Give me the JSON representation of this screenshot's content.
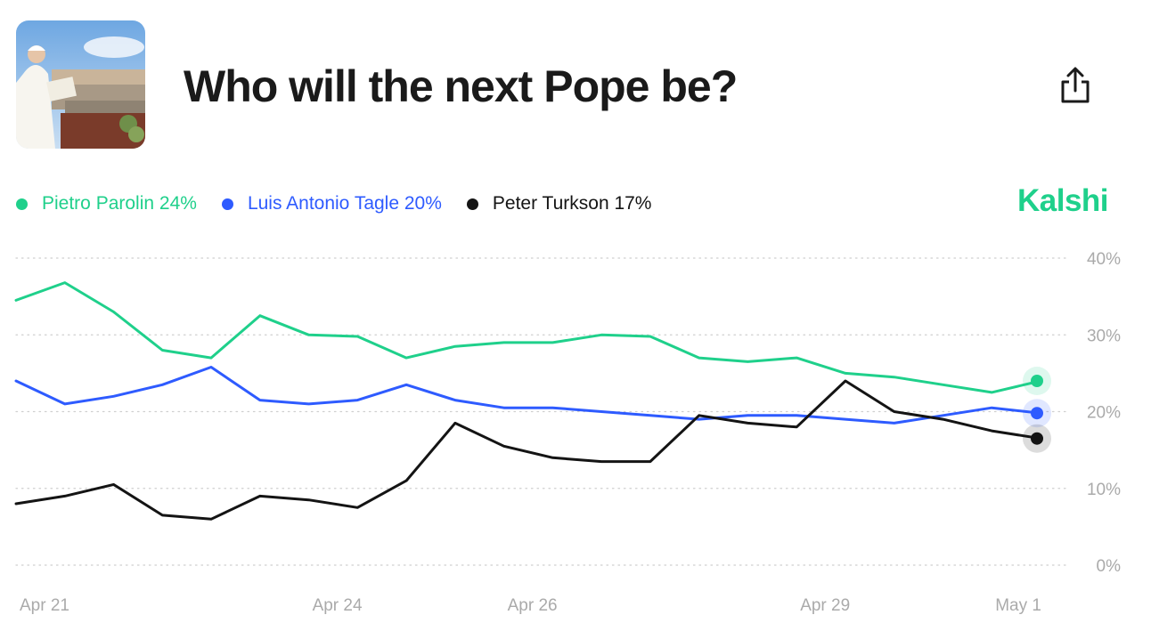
{
  "header": {
    "title": "Who will the next Pope be?"
  },
  "brand": {
    "name": "Kalshi",
    "color": "#1fd08b"
  },
  "icons": {
    "share": "share-icon",
    "thumbnail": "pope-photo"
  },
  "legend": [
    {
      "label": "Pietro Parolin 24%",
      "color": "#1fd08b"
    },
    {
      "label": "Luis Antonio Tagle 20%",
      "color": "#2e5bff"
    },
    {
      "label": "Peter Turkson 17%",
      "color": "#141414"
    }
  ],
  "chart_data": {
    "type": "line",
    "title": "",
    "xlabel": "",
    "ylabel": "",
    "ylim": [
      0,
      40
    ],
    "yticks": [
      40,
      30,
      20,
      10,
      0
    ],
    "ytick_labels": [
      "40%",
      "30%",
      "20%",
      "10%",
      "0%"
    ],
    "xticks": [
      "Apr 21",
      "Apr 24",
      "Apr 26",
      "Apr 29",
      "May 1"
    ],
    "grid": "horizontal-dotted",
    "x": [
      "Apr 21",
      "Apr 21",
      "Apr 22",
      "Apr 22",
      "Apr 23",
      "Apr 23",
      "Apr 24",
      "Apr 24",
      "Apr 25",
      "Apr 25",
      "Apr 26",
      "Apr 26",
      "Apr 27",
      "Apr 27",
      "Apr 28",
      "Apr 28",
      "Apr 29",
      "Apr 29",
      "Apr 30",
      "Apr 30",
      "May 1",
      "May 1"
    ],
    "series": [
      {
        "name": "Pietro Parolin",
        "color": "#1fd08b",
        "values": [
          34.5,
          36.8,
          33,
          28,
          27,
          32.5,
          30,
          29.8,
          27,
          28.5,
          29,
          29,
          30,
          29.8,
          27,
          26.5,
          27,
          25,
          24.5,
          23.5,
          22.5,
          24
        ]
      },
      {
        "name": "Luis Antonio Tagle",
        "color": "#2e5bff",
        "values": [
          24,
          21,
          22,
          23.5,
          25.8,
          21.5,
          21,
          21.5,
          23.5,
          21.5,
          20.5,
          20.5,
          20,
          19.5,
          19,
          19.5,
          19.5,
          19,
          18.5,
          19.5,
          20.5,
          19.8
        ]
      },
      {
        "name": "Peter Turkson",
        "color": "#141414",
        "values": [
          8,
          9,
          10.5,
          6.5,
          6,
          9,
          8.5,
          7.5,
          11,
          18.5,
          15.5,
          14,
          13.5,
          13.5,
          19.5,
          18.5,
          18,
          24,
          20,
          19,
          17.5,
          16.5
        ]
      }
    ]
  }
}
